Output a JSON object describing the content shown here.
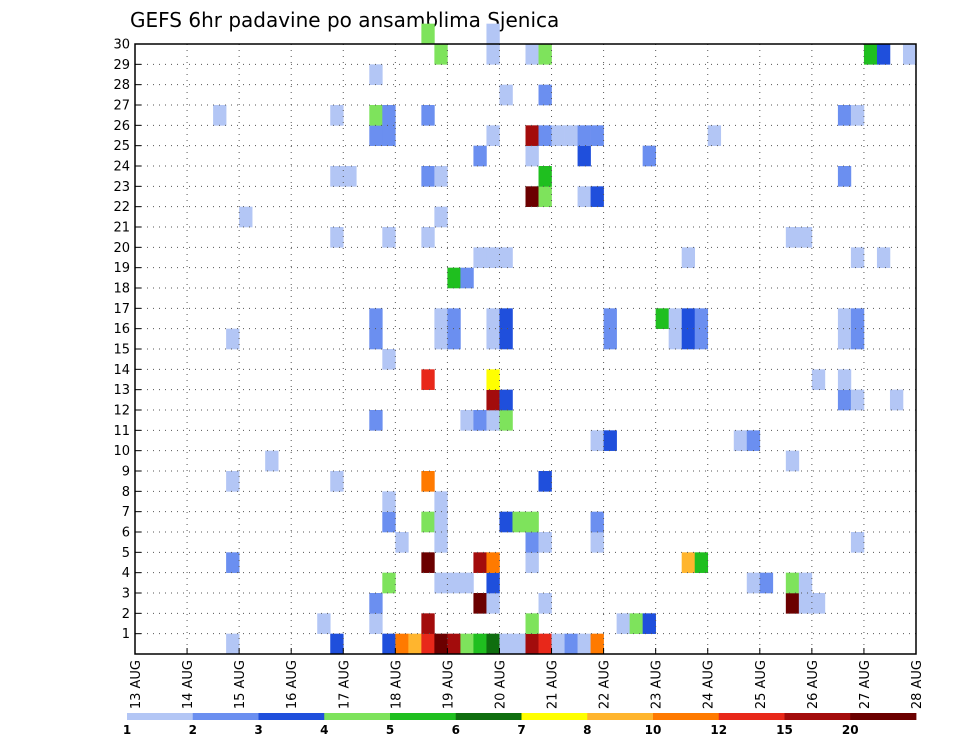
{
  "chart_data": {
    "type": "heatmap",
    "title": "GEFS 6hr padavine po ansamblima Sjenica",
    "xlabel": "",
    "ylabel": "",
    "x_tick_labels": [
      "13 AUG",
      "14 AUG",
      "15 AUG",
      "16 AUG",
      "17 AUG",
      "18 AUG",
      "19 AUG",
      "20 AUG",
      "21 AUG",
      "22 AUG",
      "23 AUG",
      "24 AUG",
      "25 AUG",
      "26 AUG",
      "27 AUG",
      "28 AUG"
    ],
    "y_tick_labels": [
      "1",
      "2",
      "3",
      "4",
      "5",
      "6",
      "7",
      "8",
      "9",
      "10",
      "11",
      "12",
      "13",
      "14",
      "15",
      "16",
      "17",
      "18",
      "19",
      "20",
      "21",
      "22",
      "23",
      "24",
      "25",
      "26",
      "27",
      "28",
      "29",
      "30"
    ],
    "x_range": [
      0,
      60
    ],
    "y_range": [
      0,
      30
    ],
    "steps_per_day": 4,
    "grid": true,
    "colorbar": {
      "position": "bottom",
      "levels": [
        "1",
        "2",
        "3",
        "4",
        "5",
        "6",
        "7",
        "8",
        "10",
        "12",
        "15",
        "20"
      ],
      "colors": [
        "#b3c6f5",
        "#6b8ff0",
        "#1f4fdc",
        "#7ee35c",
        "#1fbf1f",
        "#0f6e0f",
        "#ffff00",
        "#ffb52e",
        "#ff7a00",
        "#e8281a",
        "#a30c0c",
        "#6b0000"
      ]
    },
    "cells": [
      [
        7,
        0,
        1
      ],
      [
        15,
        0,
        3
      ],
      [
        19,
        0,
        3
      ],
      [
        20,
        0,
        9
      ],
      [
        21,
        0,
        8
      ],
      [
        22,
        0,
        10
      ],
      [
        23,
        0,
        12
      ],
      [
        24,
        0,
        11
      ],
      [
        25,
        0,
        4
      ],
      [
        26,
        0,
        5
      ],
      [
        27,
        0,
        6
      ],
      [
        28,
        0,
        1
      ],
      [
        29,
        0,
        1
      ],
      [
        30,
        0,
        11
      ],
      [
        31,
        0,
        10
      ],
      [
        32,
        0,
        1
      ],
      [
        33,
        0,
        2
      ],
      [
        34,
        0,
        1
      ],
      [
        35,
        0,
        9
      ],
      [
        14,
        1,
        1
      ],
      [
        18,
        1,
        1
      ],
      [
        22,
        1,
        11
      ],
      [
        30,
        1,
        4
      ],
      [
        37,
        1,
        1
      ],
      [
        38,
        1,
        4
      ],
      [
        39,
        1,
        3
      ],
      [
        18,
        2,
        2
      ],
      [
        26,
        2,
        12
      ],
      [
        27,
        2,
        1
      ],
      [
        31,
        2,
        1
      ],
      [
        50,
        2,
        12
      ],
      [
        51,
        2,
        1
      ],
      [
        52,
        2,
        1
      ],
      [
        19,
        3,
        4
      ],
      [
        23,
        3,
        1
      ],
      [
        24,
        3,
        1
      ],
      [
        25,
        3,
        1
      ],
      [
        27,
        3,
        3
      ],
      [
        47,
        3,
        1
      ],
      [
        48,
        3,
        2
      ],
      [
        50,
        3,
        4
      ],
      [
        51,
        3,
        1
      ],
      [
        7,
        4,
        2
      ],
      [
        22,
        4,
        12
      ],
      [
        26,
        4,
        11
      ],
      [
        27,
        4,
        9
      ],
      [
        30,
        4,
        1
      ],
      [
        42,
        4,
        8
      ],
      [
        43,
        4,
        5
      ],
      [
        20,
        5,
        1
      ],
      [
        23,
        5,
        1
      ],
      [
        30,
        5,
        2
      ],
      [
        31,
        5,
        1
      ],
      [
        35,
        5,
        1
      ],
      [
        55,
        5,
        1
      ],
      [
        19,
        6,
        2
      ],
      [
        22,
        6,
        4
      ],
      [
        23,
        6,
        1
      ],
      [
        28,
        6,
        3
      ],
      [
        29,
        6,
        4
      ],
      [
        30,
        6,
        4
      ],
      [
        35,
        6,
        2
      ],
      [
        19,
        7,
        1
      ],
      [
        23,
        7,
        1
      ],
      [
        7,
        8,
        1
      ],
      [
        15,
        8,
        1
      ],
      [
        22,
        8,
        9
      ],
      [
        31,
        8,
        3
      ],
      [
        10,
        9,
        1
      ],
      [
        50,
        9,
        1
      ],
      [
        35,
        10,
        1
      ],
      [
        36,
        10,
        3
      ],
      [
        46,
        10,
        1
      ],
      [
        47,
        10,
        2
      ],
      [
        18,
        11,
        2
      ],
      [
        25,
        11,
        1
      ],
      [
        26,
        11,
        2
      ],
      [
        27,
        11,
        1
      ],
      [
        28,
        11,
        4
      ],
      [
        27,
        12,
        11
      ],
      [
        28,
        12,
        3
      ],
      [
        54,
        12,
        2
      ],
      [
        55,
        12,
        1
      ],
      [
        58,
        12,
        1
      ],
      [
        22,
        13,
        10
      ],
      [
        27,
        13,
        7
      ],
      [
        52,
        13,
        1
      ],
      [
        54,
        13,
        1
      ],
      [
        19,
        14,
        1
      ],
      [
        7,
        15,
        1
      ],
      [
        18,
        15,
        2
      ],
      [
        23,
        15,
        1
      ],
      [
        24,
        15,
        2
      ],
      [
        27,
        15,
        1
      ],
      [
        28,
        15,
        3
      ],
      [
        36,
        15,
        2
      ],
      [
        41,
        15,
        1
      ],
      [
        42,
        15,
        3
      ],
      [
        43,
        15,
        2
      ],
      [
        54,
        15,
        1
      ],
      [
        55,
        15,
        2
      ],
      [
        18,
        16,
        2
      ],
      [
        23,
        16,
        1
      ],
      [
        24,
        16,
        2
      ],
      [
        27,
        16,
        1
      ],
      [
        28,
        16,
        3
      ],
      [
        36,
        16,
        2
      ],
      [
        40,
        16,
        5
      ],
      [
        41,
        16,
        1
      ],
      [
        42,
        16,
        3
      ],
      [
        43,
        16,
        2
      ],
      [
        54,
        16,
        1
      ],
      [
        55,
        16,
        2
      ],
      [
        24,
        18,
        5
      ],
      [
        25,
        18,
        2
      ],
      [
        26,
        19,
        1
      ],
      [
        27,
        19,
        1
      ],
      [
        28,
        19,
        1
      ],
      [
        42,
        19,
        1
      ],
      [
        55,
        19,
        1
      ],
      [
        57,
        19,
        1
      ],
      [
        15,
        20,
        1
      ],
      [
        19,
        20,
        1
      ],
      [
        22,
        20,
        1
      ],
      [
        50,
        20,
        1
      ],
      [
        51,
        20,
        1
      ],
      [
        8,
        21,
        1
      ],
      [
        23,
        21,
        1
      ],
      [
        30,
        22,
        12
      ],
      [
        31,
        22,
        4
      ],
      [
        34,
        22,
        1
      ],
      [
        35,
        22,
        3
      ],
      [
        15,
        23,
        1
      ],
      [
        16,
        23,
        1
      ],
      [
        22,
        23,
        2
      ],
      [
        23,
        23,
        1
      ],
      [
        31,
        23,
        5
      ],
      [
        54,
        23,
        2
      ],
      [
        26,
        24,
        2
      ],
      [
        30,
        24,
        1
      ],
      [
        34,
        24,
        3
      ],
      [
        39,
        24,
        2
      ],
      [
        18,
        25,
        2
      ],
      [
        19,
        25,
        2
      ],
      [
        27,
        25,
        1
      ],
      [
        30,
        25,
        11
      ],
      [
        31,
        25,
        2
      ],
      [
        32,
        25,
        1
      ],
      [
        33,
        25,
        1
      ],
      [
        34,
        25,
        2
      ],
      [
        35,
        25,
        2
      ],
      [
        44,
        25,
        1
      ],
      [
        6,
        26,
        1
      ],
      [
        15,
        26,
        1
      ],
      [
        18,
        26,
        4
      ],
      [
        19,
        26,
        2
      ],
      [
        22,
        26,
        2
      ],
      [
        54,
        26,
        2
      ],
      [
        55,
        26,
        1
      ],
      [
        28,
        27,
        1
      ],
      [
        31,
        27,
        2
      ],
      [
        18,
        28,
        1
      ],
      [
        23,
        29,
        4
      ],
      [
        27,
        29,
        1
      ],
      [
        30,
        29,
        1
      ],
      [
        31,
        29,
        4
      ],
      [
        56,
        29,
        5
      ],
      [
        57,
        29,
        3
      ],
      [
        59,
        29,
        1
      ],
      [
        22,
        30,
        4
      ],
      [
        27,
        30,
        1
      ]
    ]
  }
}
